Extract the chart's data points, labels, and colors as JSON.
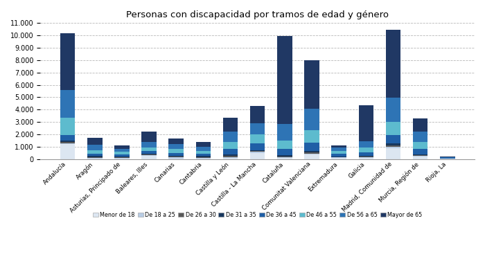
{
  "title": "Personas con discapacidad por tramos de edad y género",
  "categories": [
    "Andalucía",
    "Aragón",
    "Asturias, Principado de",
    "Baleares, Illes",
    "Canarias",
    "Cantabria",
    "Castilla y León",
    "Castilla - La Mancha",
    "Cataluña",
    "Comunitat Valenciana",
    "Extremadura",
    "Galicia",
    "Madrid, Comunidad de",
    "Murcia, Región de",
    "Rioja, La"
  ],
  "segments": [
    {
      "label": "Menor de 18",
      "color": "#dce6f1",
      "values": [
        1200,
        50,
        50,
        250,
        60,
        60,
        100,
        500,
        70,
        350,
        70,
        80,
        900,
        200,
        20
      ]
    },
    {
      "label": "De 18 a 25",
      "color": "#b8cce4",
      "values": [
        100,
        60,
        50,
        60,
        70,
        60,
        80,
        80,
        80,
        100,
        60,
        60,
        120,
        70,
        10
      ]
    },
    {
      "label": "De 26 a 30",
      "color": "#595959",
      "values": [
        80,
        50,
        40,
        50,
        60,
        50,
        80,
        60,
        60,
        80,
        40,
        50,
        100,
        50,
        8
      ]
    },
    {
      "label": "De 31 a 35",
      "color": "#17375e",
      "values": [
        130,
        80,
        70,
        80,
        80,
        80,
        120,
        100,
        100,
        120,
        60,
        80,
        160,
        80,
        15
      ]
    },
    {
      "label": "De 36 a 45",
      "color": "#1f5fa6",
      "values": [
        450,
        200,
        180,
        200,
        220,
        180,
        450,
        550,
        500,
        700,
        180,
        280,
        650,
        450,
        25
      ]
    },
    {
      "label": "De 46 a 55",
      "color": "#5dbbce",
      "values": [
        1400,
        280,
        200,
        320,
        310,
        230,
        550,
        700,
        700,
        1000,
        250,
        380,
        1100,
        550,
        25
      ]
    },
    {
      "label": "De 56 a 65",
      "color": "#2e74b5",
      "values": [
        2200,
        430,
        230,
        420,
        420,
        310,
        850,
        900,
        1350,
        1700,
        280,
        500,
        1950,
        850,
        40
      ]
    },
    {
      "label": "Mayor de 65",
      "color": "#203864",
      "values": [
        4600,
        550,
        310,
        850,
        450,
        430,
        1100,
        1400,
        7100,
        3950,
        180,
        2900,
        5500,
        1050,
        70
      ]
    }
  ],
  "ylim": [
    0,
    11000
  ],
  "yticks": [
    0,
    1000,
    2000,
    3000,
    4000,
    5000,
    6000,
    7000,
    8000,
    9000,
    10000,
    11000
  ],
  "background_color": "#ffffff",
  "grid_color": "#b0b0b0"
}
